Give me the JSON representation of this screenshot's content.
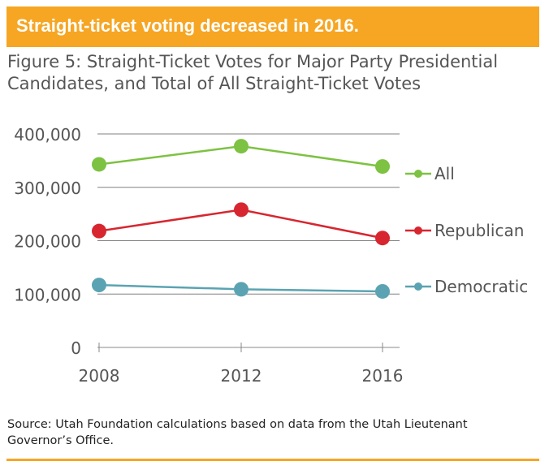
{
  "banner": {
    "text": "Straight-ticket voting decreased in 2016."
  },
  "figure_title": "Figure 5: Straight-Ticket Votes for Major Party Presidential Candidates, and Total of All Straight-Ticket Votes",
  "source": "Source:  Utah Foundation calculations based on data from the Utah Lieutenant Governor’s Office.",
  "colors": {
    "banner": "#f6a623",
    "all": "#7dc242",
    "republican": "#d7262f",
    "democratic": "#5ba3b2"
  },
  "chart_data": {
    "type": "line",
    "x": [
      "2008",
      "2012",
      "2016"
    ],
    "ylim": [
      0,
      400000
    ],
    "yticks": [
      0,
      100000,
      200000,
      300000,
      400000
    ],
    "ytick_labels": [
      "0",
      "100,000",
      "200,000",
      "300,000",
      "400,000"
    ],
    "grid": true,
    "legend": "right",
    "series": [
      {
        "name": "All",
        "color": "#7dc242",
        "values": [
          343000,
          377000,
          339000
        ]
      },
      {
        "name": "Republican",
        "color": "#d7262f",
        "values": [
          218000,
          258000,
          205000
        ]
      },
      {
        "name": "Democratic",
        "color": "#5ba3b2",
        "values": [
          117000,
          109000,
          105000
        ]
      }
    ]
  }
}
